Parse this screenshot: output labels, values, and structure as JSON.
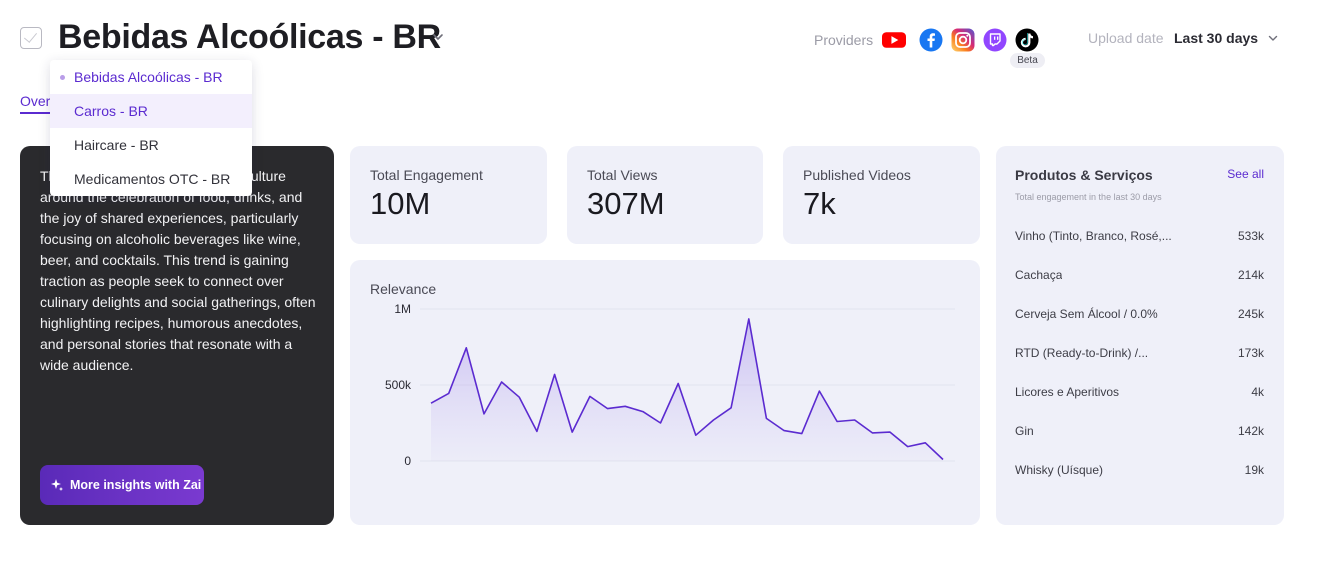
{
  "header": {
    "title": "Bebidas Alcoólicas - BR",
    "providers_label": "Providers",
    "providers": [
      {
        "name": "youtube-icon",
        "color": "#ff0000"
      },
      {
        "name": "facebook-icon",
        "color": "#1877f2"
      },
      {
        "name": "instagram-icon",
        "color": "#d62976"
      },
      {
        "name": "twitch-icon",
        "color": "#9146ff"
      },
      {
        "name": "tiktok-icon",
        "color": "#000000"
      }
    ],
    "beta_label": "Beta",
    "upload_label": "Upload date",
    "upload_value": "Last 30 days"
  },
  "tabs": {
    "overview": "Overview"
  },
  "dropdown": {
    "items": [
      "Bebidas Alcoólicas - BR",
      "Carros - BR",
      "Haircare - BR",
      "Medicamentos OTC - BR"
    ],
    "selected_index": 0,
    "hovered_index": 1
  },
  "description": {
    "text": "This trend celebrates the vibrant culture around the celebration of food, drinks, and the joy of shared experiences, particularly focusing on alcoholic beverages like wine, beer, and cocktails. This trend is gaining traction as people seek to connect over culinary delights and social gatherings, often highlighting recipes, humorous anecdotes, and personal stories that resonate with a wide audience.",
    "button_label": "More insights with Zai"
  },
  "stats": [
    {
      "label": "Total Engagement",
      "value": "10M"
    },
    {
      "label": "Total Views",
      "value": "307M"
    },
    {
      "label": "Published Videos",
      "value": "7k"
    }
  ],
  "chart_data": {
    "type": "area",
    "title": "Relevance",
    "y_ticks": [
      "1M",
      "500k",
      "0"
    ],
    "ylim": [
      0,
      1000000
    ],
    "values": [
      380000,
      445000,
      745000,
      310000,
      520000,
      420000,
      195000,
      570000,
      190000,
      425000,
      345000,
      360000,
      325000,
      250000,
      510000,
      170000,
      270000,
      350000,
      935000,
      280000,
      200000,
      180000,
      460000,
      260000,
      270000,
      185000,
      190000,
      95000,
      120000,
      10000
    ],
    "line_color": "#5b2bd0",
    "grid": true
  },
  "products": {
    "title": "Produtos & Serviços",
    "see_all": "See all",
    "subtitle": "Total engagement in the last 30 days",
    "rows": [
      {
        "name": "Vinho (Tinto, Branco, Rosé,...",
        "value": "533k"
      },
      {
        "name": "Cachaça",
        "value": "214k"
      },
      {
        "name": "Cerveja Sem Álcool / 0.0%",
        "value": "245k"
      },
      {
        "name": "RTD (Ready-to-Drink) /...",
        "value": "173k"
      },
      {
        "name": "Licores e Aperitivos",
        "value": "4k"
      },
      {
        "name": "Gin",
        "value": "142k"
      },
      {
        "name": "Whisky (Uísque)",
        "value": "19k"
      }
    ]
  }
}
